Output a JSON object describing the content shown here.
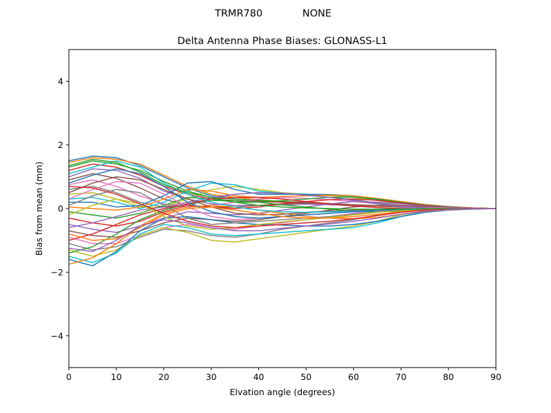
{
  "figure": {
    "suptitle_left": "TRMR780",
    "suptitle_right": "NONE"
  },
  "chart_data": {
    "type": "line",
    "title": "Delta Antenna Phase Biases: GLONASS-L1",
    "xlabel": "Elvation angle (degrees)",
    "ylabel": "Bias from mean (mm)",
    "xlim": [
      0,
      90
    ],
    "ylim": [
      -5,
      5
    ],
    "xticks": [
      0,
      10,
      20,
      30,
      40,
      50,
      60,
      70,
      80,
      90
    ],
    "yticks": [
      -4,
      -2,
      0,
      2,
      4
    ],
    "ytick_labels": [
      "−4",
      "−2",
      "0",
      "2",
      "4"
    ],
    "grid": false,
    "x": [
      0,
      5,
      10,
      15,
      20,
      25,
      30,
      35,
      40,
      45,
      50,
      55,
      60,
      65,
      70,
      75,
      80,
      85,
      90
    ],
    "series_note": "many overlapping curves (one per azimuth/satellite); data estimated from envelope",
    "series": [
      {
        "values": [
          1.5,
          1.65,
          1.6,
          1.35,
          1.0,
          0.65,
          0.4,
          0.3,
          0.25,
          0.2,
          0.15,
          0.12,
          0.1,
          0.08,
          0.05,
          0.03,
          0.02,
          0.01,
          0.0
        ]
      },
      {
        "values": [
          1.45,
          1.6,
          1.55,
          1.4,
          1.05,
          0.7,
          0.45,
          0.35,
          0.28,
          0.22,
          0.18,
          0.14,
          0.1,
          0.07,
          0.05,
          0.03,
          0.02,
          0.01,
          0.0
        ]
      },
      {
        "values": [
          1.3,
          1.5,
          1.4,
          1.2,
          0.85,
          0.55,
          0.35,
          0.3,
          0.26,
          0.22,
          0.2,
          0.16,
          0.12,
          0.09,
          0.06,
          0.04,
          0.02,
          0.01,
          0.0
        ]
      },
      {
        "values": [
          1.2,
          1.4,
          1.3,
          1.05,
          0.7,
          0.45,
          0.3,
          0.25,
          0.22,
          0.2,
          0.18,
          0.15,
          0.12,
          0.09,
          0.06,
          0.04,
          0.02,
          0.01,
          0.0
        ]
      },
      {
        "values": [
          1.0,
          1.25,
          1.2,
          0.95,
          0.55,
          0.3,
          0.15,
          0.1,
          0.1,
          0.12,
          0.14,
          0.12,
          0.1,
          0.08,
          0.05,
          0.03,
          0.02,
          0.01,
          0.0
        ]
      },
      {
        "values": [
          0.9,
          1.1,
          0.95,
          0.65,
          0.3,
          0.1,
          0.05,
          0.05,
          0.1,
          0.15,
          0.18,
          0.16,
          0.12,
          0.08,
          0.05,
          0.03,
          0.02,
          0.01,
          0.0
        ]
      },
      {
        "values": [
          0.75,
          0.9,
          0.7,
          0.4,
          0.15,
          0.05,
          0.1,
          0.2,
          0.3,
          0.35,
          0.32,
          0.28,
          0.22,
          0.15,
          0.08,
          0.04,
          0.02,
          0.01,
          0.0
        ]
      },
      {
        "values": [
          0.6,
          0.7,
          0.5,
          0.2,
          0.05,
          0.1,
          0.3,
          0.45,
          0.5,
          0.48,
          0.42,
          0.35,
          0.28,
          0.18,
          0.1,
          0.05,
          0.02,
          0.01,
          0.0
        ]
      },
      {
        "values": [
          0.45,
          0.5,
          0.3,
          0.05,
          0.05,
          0.3,
          0.6,
          0.7,
          0.6,
          0.5,
          0.45,
          0.4,
          0.35,
          0.25,
          0.15,
          0.08,
          0.04,
          0.02,
          0.0
        ]
      },
      {
        "values": [
          0.3,
          0.35,
          0.2,
          0.0,
          0.2,
          0.55,
          0.8,
          0.75,
          0.55,
          0.48,
          0.45,
          0.42,
          0.38,
          0.28,
          0.18,
          0.1,
          0.05,
          0.02,
          0.0
        ]
      },
      {
        "values": [
          0.2,
          0.2,
          0.05,
          0.1,
          0.4,
          0.8,
          0.85,
          0.6,
          0.45,
          0.45,
          0.45,
          0.44,
          0.4,
          0.3,
          0.2,
          0.12,
          0.06,
          0.02,
          0.0
        ]
      },
      {
        "values": [
          0.05,
          0.0,
          -0.05,
          0.05,
          0.3,
          0.6,
          0.55,
          0.4,
          0.35,
          0.38,
          0.4,
          0.42,
          0.4,
          0.32,
          0.22,
          0.13,
          0.06,
          0.02,
          0.0
        ]
      },
      {
        "values": [
          -0.1,
          -0.2,
          -0.3,
          -0.15,
          0.1,
          0.35,
          0.3,
          0.2,
          0.2,
          0.25,
          0.3,
          0.35,
          0.36,
          0.3,
          0.2,
          0.12,
          0.06,
          0.02,
          0.0
        ]
      },
      {
        "values": [
          -0.3,
          -0.45,
          -0.55,
          -0.4,
          -0.1,
          0.1,
          0.05,
          0.0,
          0.05,
          0.15,
          0.22,
          0.28,
          0.3,
          0.26,
          0.18,
          0.1,
          0.05,
          0.02,
          0.0
        ]
      },
      {
        "values": [
          -0.5,
          -0.65,
          -0.75,
          -0.55,
          -0.3,
          -0.1,
          -0.15,
          -0.2,
          -0.15,
          -0.05,
          0.05,
          0.15,
          0.22,
          0.2,
          0.15,
          0.08,
          0.04,
          0.01,
          0.0
        ]
      },
      {
        "values": [
          -0.7,
          -0.85,
          -0.9,
          -0.7,
          -0.45,
          -0.3,
          -0.35,
          -0.4,
          -0.35,
          -0.25,
          -0.15,
          -0.05,
          0.05,
          0.1,
          0.1,
          0.06,
          0.03,
          0.01,
          0.0
        ]
      },
      {
        "values": [
          -0.9,
          -1.1,
          -1.1,
          -0.85,
          -0.6,
          -0.5,
          -0.6,
          -0.65,
          -0.55,
          -0.45,
          -0.35,
          -0.25,
          -0.15,
          -0.05,
          0.02,
          0.03,
          0.02,
          0.01,
          0.0
        ]
      },
      {
        "values": [
          -1.1,
          -1.3,
          -1.2,
          -0.9,
          -0.65,
          -0.7,
          -0.85,
          -0.9,
          -0.8,
          -0.65,
          -0.55,
          -0.45,
          -0.35,
          -0.2,
          -0.08,
          -0.02,
          0.0,
          0.0,
          0.0
        ]
      },
      {
        "values": [
          -1.3,
          -1.5,
          -1.3,
          -0.85,
          -0.6,
          -0.75,
          -1.0,
          -1.05,
          -0.95,
          -0.85,
          -0.75,
          -0.65,
          -0.55,
          -0.4,
          -0.2,
          -0.08,
          -0.03,
          -0.01,
          0.0
        ]
      },
      {
        "values": [
          -1.5,
          -1.7,
          -1.4,
          -0.8,
          -0.5,
          -0.6,
          -0.8,
          -0.85,
          -0.8,
          -0.75,
          -0.7,
          -0.65,
          -0.6,
          -0.45,
          -0.25,
          -0.1,
          -0.04,
          -0.01,
          0.0
        ]
      },
      {
        "values": [
          -1.6,
          -1.8,
          -1.35,
          -0.7,
          -0.3,
          -0.25,
          -0.35,
          -0.45,
          -0.5,
          -0.52,
          -0.55,
          -0.55,
          -0.5,
          -0.4,
          -0.25,
          -0.12,
          -0.05,
          -0.02,
          0.0
        ]
      },
      {
        "values": [
          -1.75,
          -1.55,
          -1.1,
          -0.55,
          -0.15,
          0.05,
          0.1,
          0.05,
          -0.05,
          -0.15,
          -0.25,
          -0.3,
          -0.32,
          -0.28,
          -0.18,
          -0.09,
          -0.04,
          -0.01,
          0.0
        ]
      },
      {
        "values": [
          -1.4,
          -1.2,
          -0.8,
          -0.35,
          -0.05,
          0.15,
          0.25,
          0.25,
          0.2,
          0.12,
          0.05,
          -0.02,
          -0.08,
          -0.1,
          -0.08,
          -0.05,
          -0.02,
          -0.01,
          0.0
        ]
      },
      {
        "values": [
          -1.0,
          -0.8,
          -0.5,
          -0.2,
          0.0,
          0.15,
          0.3,
          0.35,
          0.35,
          0.3,
          0.22,
          0.15,
          0.08,
          0.03,
          0.0,
          -0.01,
          -0.01,
          0.0,
          0.0
        ]
      },
      {
        "values": [
          -0.6,
          -0.45,
          -0.25,
          -0.05,
          0.05,
          0.2,
          0.35,
          0.45,
          0.5,
          0.48,
          0.42,
          0.35,
          0.25,
          0.15,
          0.06,
          0.02,
          0.0,
          0.0,
          0.0
        ]
      },
      {
        "values": [
          0.5,
          0.8,
          1.0,
          0.9,
          0.6,
          0.3,
          0.05,
          -0.15,
          -0.2,
          -0.18,
          -0.12,
          -0.08,
          -0.05,
          -0.03,
          -0.02,
          -0.01,
          0.0,
          0.0,
          0.0
        ]
      },
      {
        "values": [
          0.3,
          0.6,
          0.85,
          0.8,
          0.45,
          0.05,
          -0.25,
          -0.35,
          -0.3,
          -0.25,
          -0.2,
          -0.15,
          -0.1,
          -0.06,
          -0.03,
          -0.01,
          0.0,
          0.0,
          0.0
        ]
      },
      {
        "values": [
          0.1,
          0.4,
          0.6,
          0.5,
          0.1,
          -0.3,
          -0.5,
          -0.45,
          -0.4,
          -0.35,
          -0.3,
          -0.25,
          -0.18,
          -0.1,
          -0.05,
          -0.02,
          0.0,
          0.0,
          0.0
        ]
      },
      {
        "values": [
          -0.2,
          0.1,
          0.3,
          0.15,
          -0.25,
          -0.55,
          -0.65,
          -0.6,
          -0.5,
          -0.42,
          -0.35,
          -0.28,
          -0.2,
          -0.12,
          -0.06,
          -0.02,
          0.0,
          0.0,
          0.0
        ]
      },
      {
        "values": [
          1.1,
          1.3,
          1.5,
          1.3,
          0.8,
          0.45,
          0.2,
          0.05,
          -0.05,
          -0.1,
          -0.12,
          -0.1,
          -0.08,
          -0.05,
          -0.03,
          -0.01,
          0.0,
          0.0,
          0.0
        ]
      },
      {
        "values": [
          0.8,
          1.05,
          1.25,
          1.1,
          0.7,
          0.2,
          -0.1,
          -0.25,
          -0.3,
          -0.25,
          -0.2,
          -0.15,
          -0.1,
          -0.06,
          -0.03,
          -0.01,
          0.0,
          0.0,
          0.0
        ]
      },
      {
        "values": [
          -0.8,
          -1.0,
          -0.95,
          -0.6,
          -0.2,
          0.0,
          0.05,
          -0.05,
          -0.15,
          -0.25,
          -0.3,
          -0.3,
          -0.25,
          -0.18,
          -0.1,
          -0.04,
          -0.01,
          0.0,
          0.0
        ]
      },
      {
        "values": [
          1.35,
          1.55,
          1.45,
          1.15,
          0.75,
          0.5,
          0.35,
          0.2,
          0.1,
          0.05,
          0.02,
          0.0,
          -0.02,
          -0.02,
          -0.01,
          0.0,
          0.0,
          0.0,
          0.0
        ]
      },
      {
        "values": [
          0.7,
          0.65,
          0.45,
          0.15,
          -0.15,
          -0.4,
          -0.55,
          -0.6,
          -0.55,
          -0.5,
          -0.45,
          -0.4,
          -0.32,
          -0.22,
          -0.12,
          -0.05,
          -0.02,
          0.0,
          0.0
        ]
      },
      {
        "values": [
          -1.25,
          -1.35,
          -1.0,
          -0.55,
          -0.35,
          -0.45,
          -0.6,
          -0.7,
          -0.7,
          -0.62,
          -0.55,
          -0.48,
          -0.4,
          -0.3,
          -0.18,
          -0.08,
          -0.03,
          -0.01,
          0.0
        ]
      }
    ],
    "colors": [
      "#1f77b4",
      "#ff7f0e",
      "#2ca02c",
      "#d62728",
      "#9467bd",
      "#8c564b",
      "#e377c2",
      "#7f7f7f",
      "#bcbd22",
      "#17becf"
    ]
  }
}
